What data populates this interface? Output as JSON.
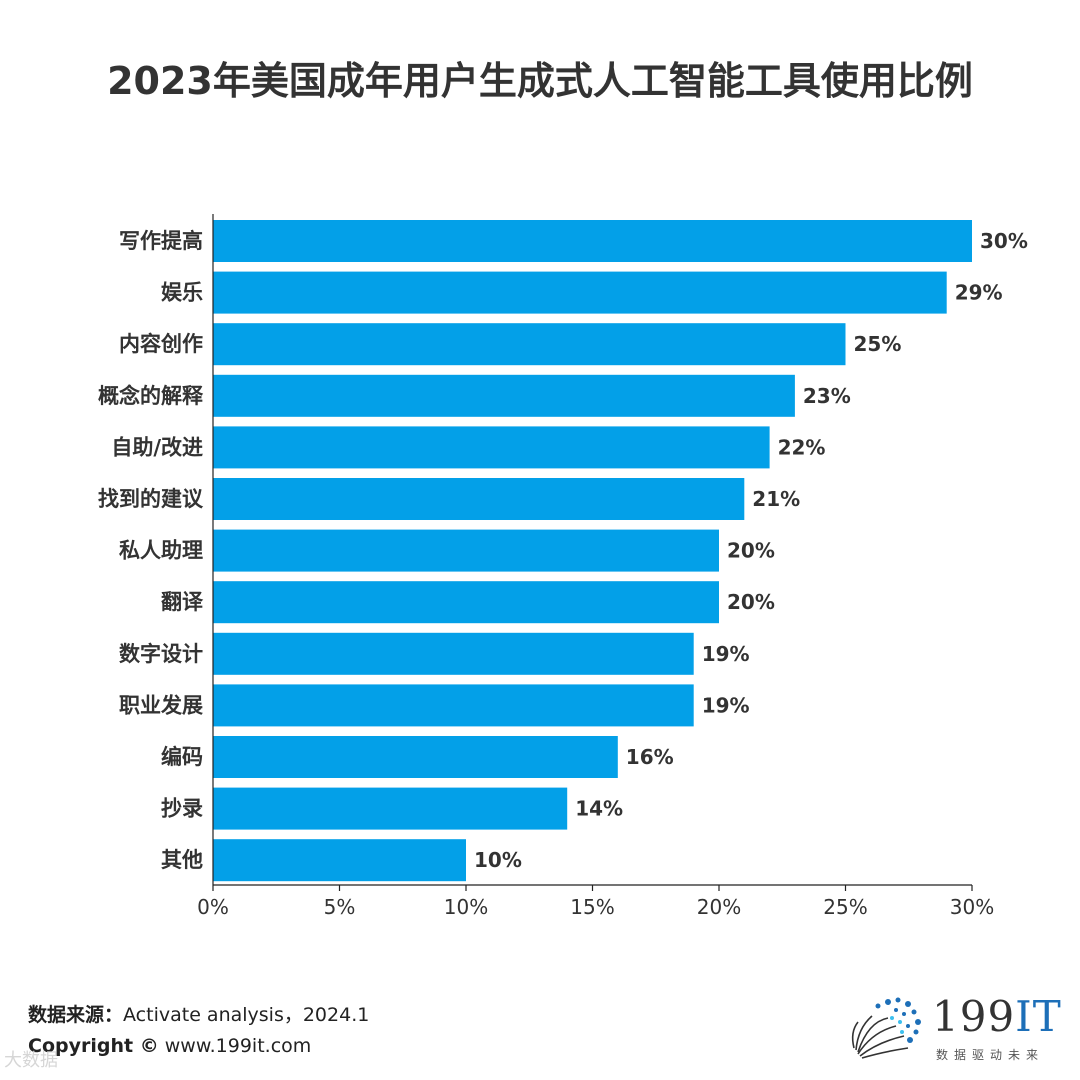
{
  "chart_data": {
    "type": "bar",
    "orientation": "horizontal",
    "title": "2023年美国成年用户生成式人工智能工具使用比例",
    "categories": [
      "写作提高",
      "娱乐",
      "内容创作",
      "概念的解释",
      "自助/改进",
      "找到的建议",
      "私人助理",
      "翻译",
      "数字设计",
      "职业发展",
      "编码",
      "抄录",
      "其他"
    ],
    "values": [
      30,
      29,
      25,
      23,
      22,
      21,
      20,
      20,
      19,
      19,
      16,
      14,
      10
    ],
    "value_labels": [
      "30%",
      "29%",
      "25%",
      "23%",
      "22%",
      "21%",
      "20%",
      "20%",
      "19%",
      "19%",
      "16%",
      "14%",
      "10%"
    ],
    "xlim": [
      0,
      30
    ],
    "ticks": [
      0,
      5,
      10,
      15,
      20,
      25,
      30
    ],
    "tick_labels": [
      "0%",
      "5%",
      "10%",
      "15%",
      "20%",
      "25%",
      "30%"
    ],
    "xlabel": "",
    "ylabel": "",
    "grid": false,
    "bar_color": "#03a0e8"
  },
  "footer": {
    "source_label": "数据来源：",
    "source_text": "Activate analysis，2024.1",
    "copyright_label": "Copyright ©",
    "copyright_text": " www.199it.com"
  },
  "logo": {
    "brand": "199",
    "brand_suffix": "IT",
    "tagline": "数据驱动未来"
  },
  "watermark": "大数据"
}
